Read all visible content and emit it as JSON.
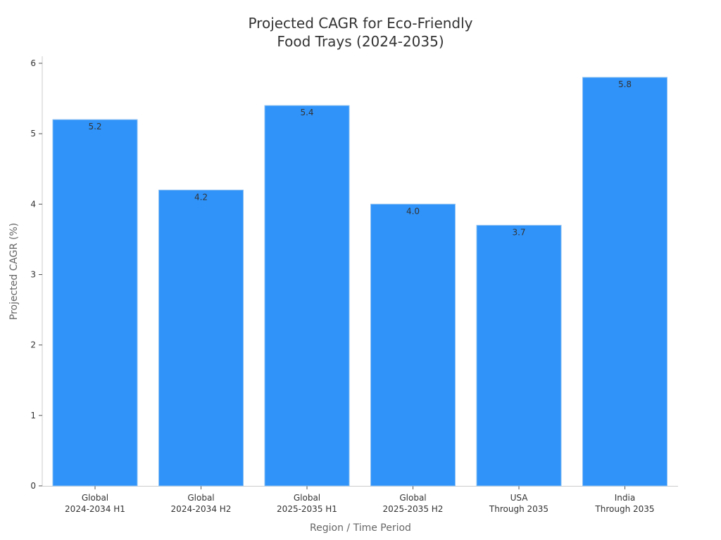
{
  "chart_data": {
    "type": "bar",
    "title_lines": [
      "Projected CAGR for Eco-Friendly",
      "Food Trays (2024-2035)"
    ],
    "xlabel": "Region / Time Period",
    "ylabel": "Projected CAGR (%)",
    "categories": [
      [
        "Global",
        "2024-2034 H1"
      ],
      [
        "Global",
        "2024-2034 H2"
      ],
      [
        "Global",
        "2025-2035 H1"
      ],
      [
        "Global",
        "2025-2035 H2"
      ],
      [
        "USA",
        "Through 2035"
      ],
      [
        "India",
        "Through 2035"
      ]
    ],
    "values": [
      5.2,
      4.2,
      5.4,
      4.0,
      3.7,
      5.8
    ],
    "value_labels": [
      "5.2",
      "4.2",
      "5.4",
      "4.0",
      "3.7",
      "5.8"
    ],
    "ylim": [
      0,
      6
    ],
    "yticks": [
      0,
      1,
      2,
      3,
      4,
      5,
      6
    ],
    "bar_color": "#2f93fa",
    "bar_edge_color": "#8ec0f0",
    "grid": false
  }
}
